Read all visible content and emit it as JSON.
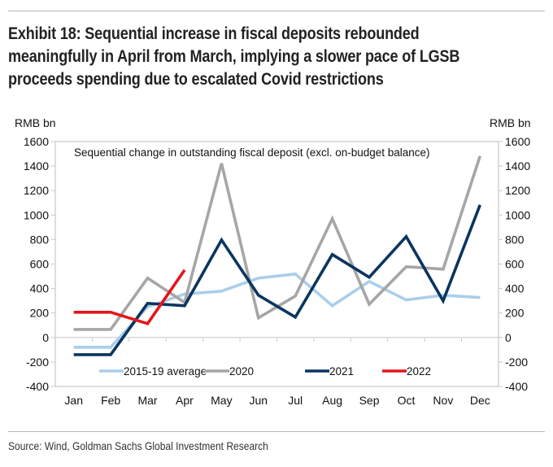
{
  "header": {
    "title": "Exhibit 18: Sequential increase in fiscal deposits rebounded meaningfully in April from March, implying a slower pace of LGSB proceeds spending due to escalated Covid restrictions"
  },
  "footer": {
    "source": "Source: Wind, Goldman Sachs Global Investment Research"
  },
  "chart_data": {
    "type": "line",
    "title": "Sequential change in outstanding fiscal deposit (excl. on-budget balance)",
    "ylabel_left": "RMB bn",
    "ylabel_right": "RMB bn",
    "ylim": [
      -400,
      1600
    ],
    "yticks": [
      1600,
      1400,
      1200,
      1000,
      800,
      600,
      400,
      200,
      0,
      -200,
      -400
    ],
    "categories": [
      "Jan",
      "Feb",
      "Mar",
      "Apr",
      "May",
      "Jun",
      "Jul",
      "Aug",
      "Sep",
      "Oct",
      "Nov",
      "Dec"
    ],
    "legend_position": "bottom-inside",
    "series": [
      {
        "name": "2015-19 average",
        "color": "#a9cfea",
        "values": [
          -80,
          -80,
          250,
          355,
          379,
          485,
          518,
          259,
          458,
          306,
          345,
          326
        ]
      },
      {
        "name": "2020",
        "color": "#a6a6a6",
        "values": [
          66,
          66,
          485,
          286,
          1422,
          160,
          339,
          970,
          272,
          578,
          558,
          1482
        ]
      },
      {
        "name": "2021",
        "color": "#0b3560",
        "values": [
          -140,
          -140,
          279,
          259,
          797,
          345,
          166,
          678,
          492,
          824,
          299,
          1083
        ]
      },
      {
        "name": "2022",
        "color": "#e3161c",
        "values": [
          206,
          206,
          113,
          551
        ]
      }
    ]
  }
}
